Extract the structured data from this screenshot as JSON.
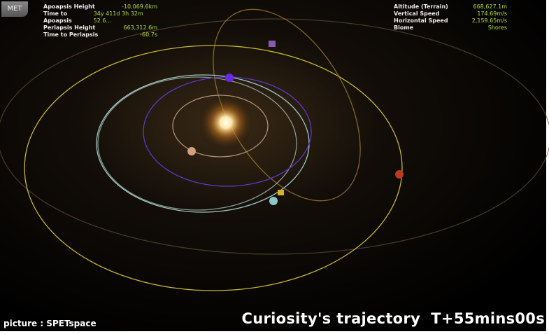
{
  "met_button": "MET",
  "left_panel": {
    "rows": [
      [
        "Apoapsis Height",
        "-10,069.6km"
      ],
      [
        "Time to Apoapsis",
        "34y 411d 3h 32m 52.6..."
      ],
      [
        "Periapsis Height",
        "663,312.6m"
      ],
      [
        "Time to Periapsis",
        "-60.7s"
      ]
    ]
  },
  "right_panel": {
    "rows": [
      [
        "Altitude (Terrain)",
        "668,627.1m"
      ],
      [
        "Vertical Speed",
        "174.69m/s"
      ],
      [
        "Horizontal Speed",
        "2,159.65m/s"
      ],
      [
        "Biome",
        "Shores"
      ]
    ]
  },
  "caption": {
    "title": "Curiosity's trajectory",
    "time": "T+55mins00s"
  },
  "credit": "picture : SPETspace"
}
